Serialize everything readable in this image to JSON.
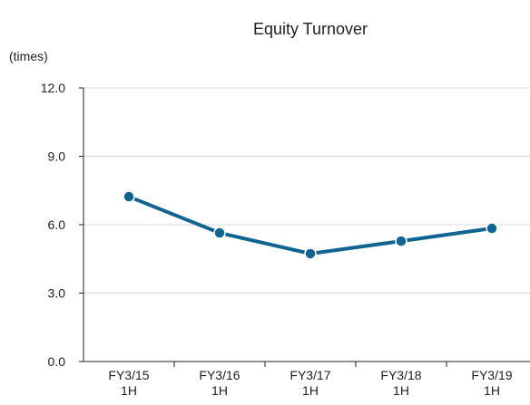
{
  "chart_data": {
    "type": "line",
    "title": "Equity Turnover",
    "y_label": "(times)",
    "categories": [
      [
        "FY3/15",
        "1H"
      ],
      [
        "FY3/16",
        "1H"
      ],
      [
        "FY3/17",
        "1H"
      ],
      [
        "FY3/18",
        "1H"
      ],
      [
        "FY3/19",
        "1H"
      ]
    ],
    "series": [
      {
        "name": "Equity Turnover",
        "color": "#0f6491",
        "values": [
          7.23,
          5.64,
          4.73,
          5.28,
          5.84
        ]
      }
    ],
    "ylim": [
      0,
      12
    ],
    "yticks": [
      {
        "value": 0,
        "label": "0.0"
      },
      {
        "value": 3,
        "label": "3.0"
      },
      {
        "value": 6,
        "label": "6.0"
      },
      {
        "value": 9,
        "label": "9.0"
      },
      {
        "value": 12,
        "label": "12.0"
      }
    ],
    "grid": true
  }
}
